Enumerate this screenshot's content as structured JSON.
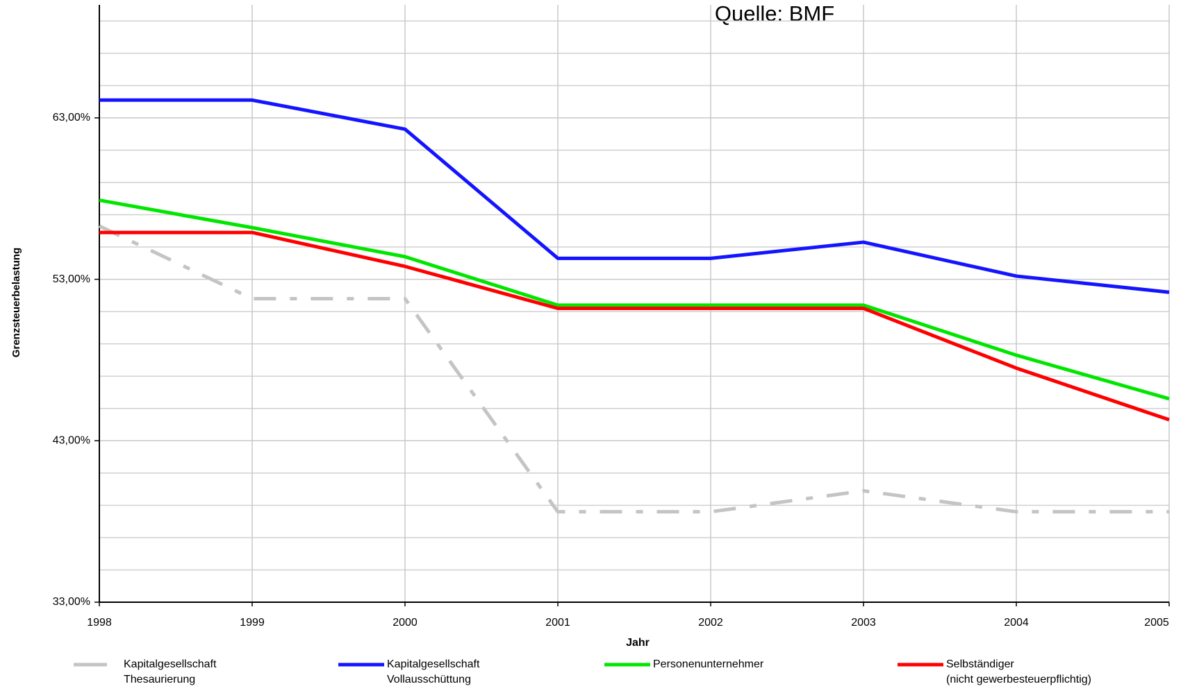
{
  "chart_data": {
    "type": "line",
    "title": "Quelle: BMF",
    "x_label": "Jahr",
    "y_label": "Grenzsteuerbelastung",
    "x": [
      1998,
      1999,
      2000,
      2001,
      2002,
      2003,
      2004,
      2005
    ],
    "xlim": [
      1998,
      2005
    ],
    "xticks": [
      1998,
      1999,
      2000,
      2001,
      2002,
      2003,
      2004,
      2005
    ],
    "ylim": [
      33,
      70
    ],
    "yticks": [
      {
        "value": 33,
        "label": "33,00%"
      },
      {
        "value": 43,
        "label": "43,00%"
      },
      {
        "value": 53,
        "label": "53,00%"
      },
      {
        "value": 63,
        "label": "63,00%"
      }
    ],
    "minor_yticks": [
      35,
      37,
      39,
      41,
      45,
      47,
      49,
      51,
      55,
      57,
      59,
      61,
      65,
      67,
      69
    ],
    "grid": true,
    "legend": "bottom",
    "series": [
      {
        "name": [
          "Kapitalgesellschaft",
          "Thesaurierung"
        ],
        "color": "#c4c4c4",
        "dashed": true,
        "values": [
          56.3,
          51.8,
          51.8,
          38.6,
          38.6,
          39.9,
          38.6,
          38.6
        ]
      },
      {
        "name": [
          "Kapitalgesellschaft",
          "Vollausschüttung"
        ],
        "color": "#1414ff",
        "values": [
          64.1,
          64.1,
          62.3,
          54.3,
          54.3,
          55.3,
          53.2,
          52.2
        ]
      },
      {
        "name": [
          "Personenunternehmer"
        ],
        "color": "#00e600",
        "values": [
          57.9,
          56.2,
          54.4,
          51.4,
          51.4,
          51.4,
          48.3,
          45.6
        ]
      },
      {
        "name": [
          "Selbständiger",
          "(nicht gewerbesteuerpflichtig)"
        ],
        "color": "#ff0000",
        "values": [
          55.9,
          55.9,
          53.8,
          51.2,
          51.2,
          51.2,
          47.5,
          44.3
        ]
      }
    ]
  }
}
